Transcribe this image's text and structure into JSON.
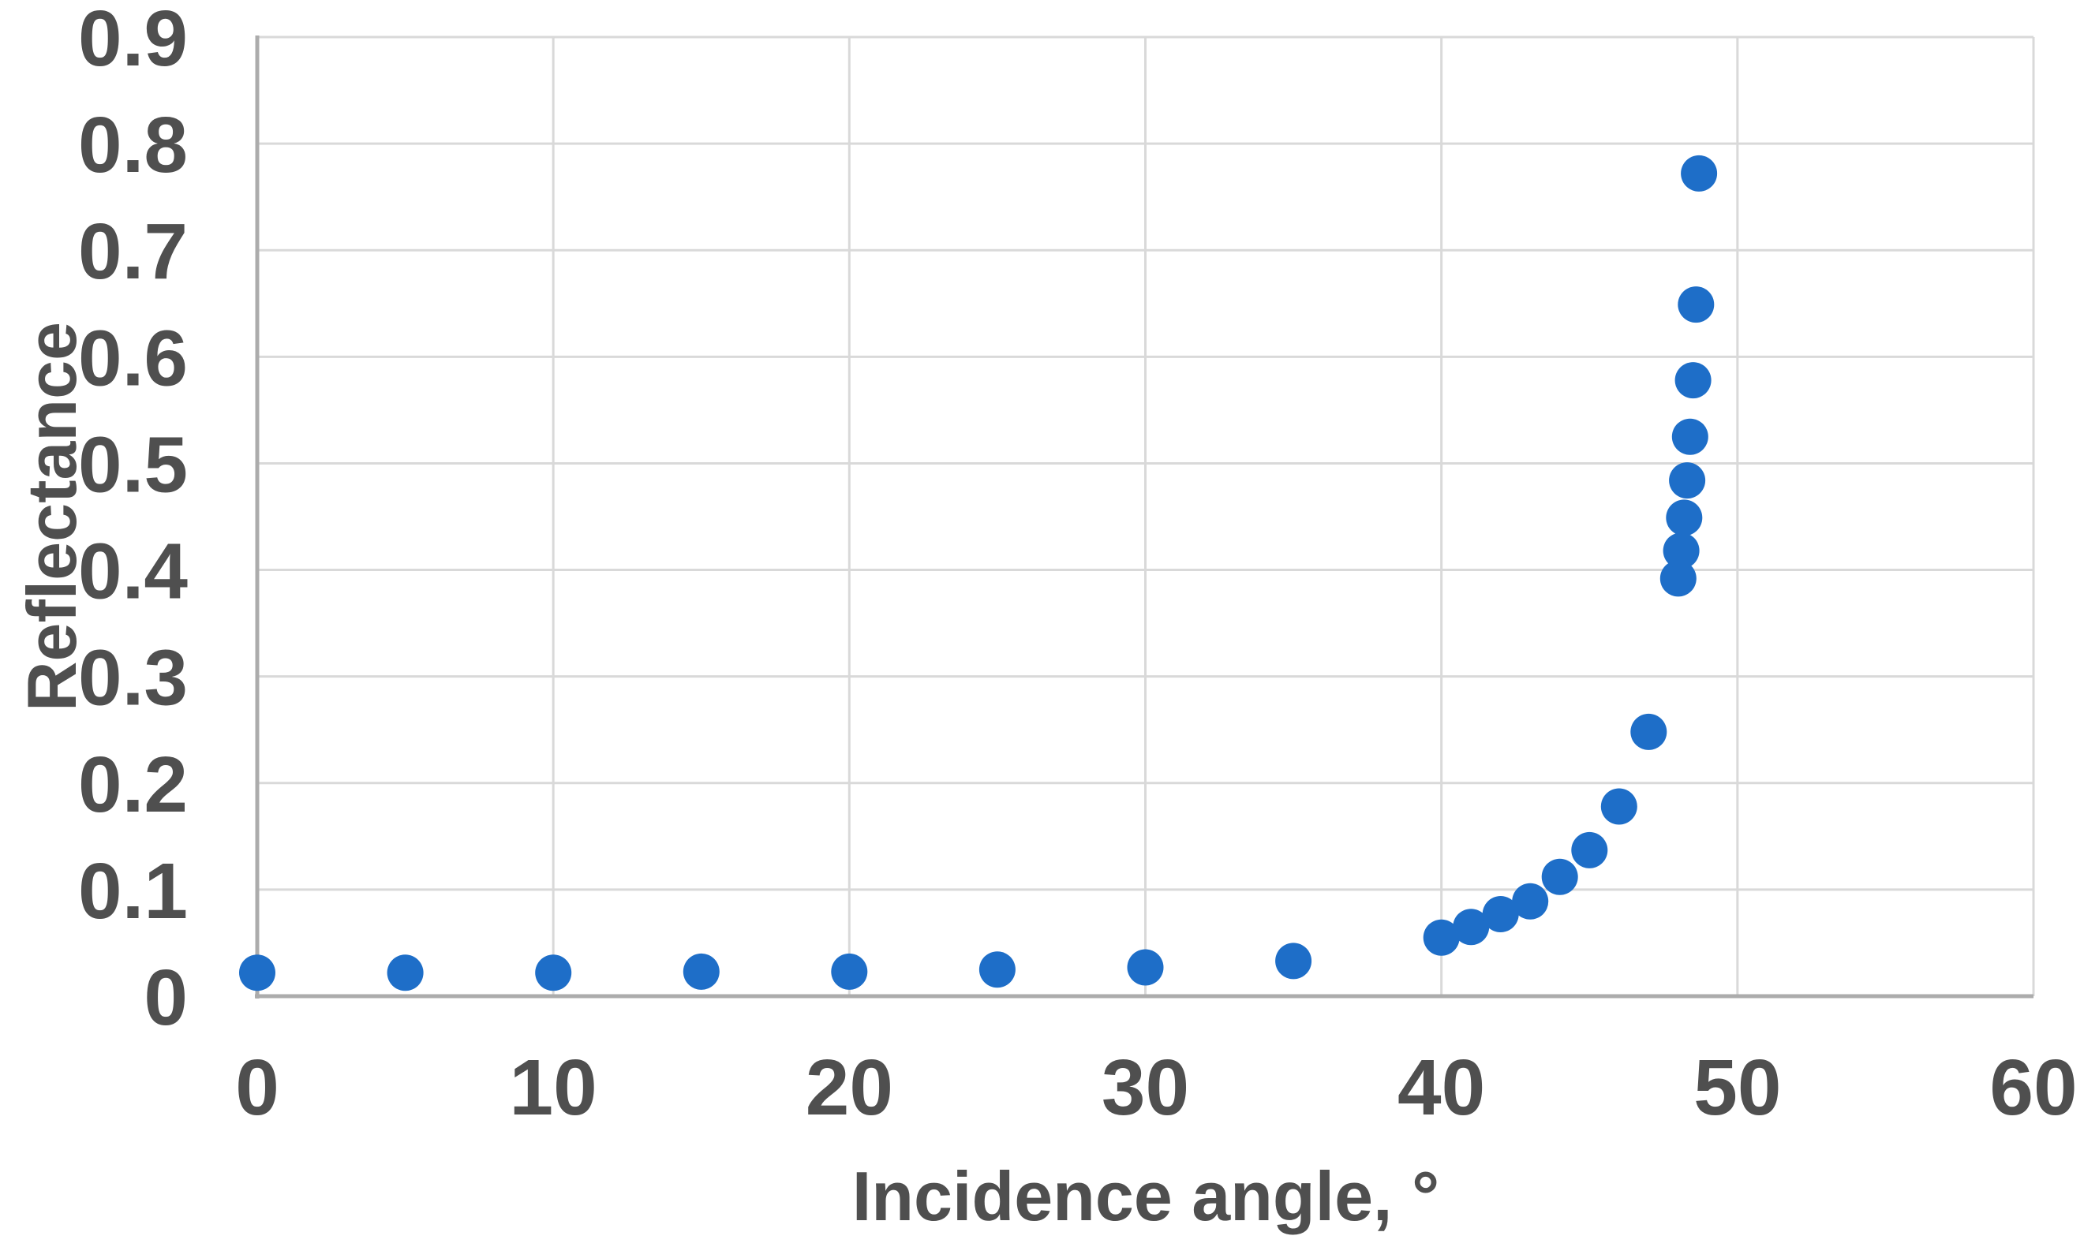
{
  "chart_data": {
    "type": "scatter",
    "title": "",
    "xlabel": "Incidence angle, °",
    "ylabel": "Reflectance",
    "x": [
      0,
      5,
      10,
      15,
      20,
      25,
      30,
      35,
      40,
      41,
      42,
      43,
      44,
      45,
      46,
      47,
      48.0,
      48.1,
      48.2,
      48.3,
      48.4,
      48.5,
      48.6,
      48.7
    ],
    "y": [
      0.022,
      0.022,
      0.022,
      0.023,
      0.023,
      0.025,
      0.027,
      0.033,
      0.055,
      0.065,
      0.077,
      0.089,
      0.112,
      0.137,
      0.178,
      0.248,
      0.392,
      0.418,
      0.449,
      0.484,
      0.525,
      0.578,
      0.649,
      0.772
    ],
    "xlim": [
      0,
      60
    ],
    "ylim": [
      0,
      0.9
    ],
    "x_ticks": [
      0,
      10,
      20,
      30,
      40,
      50,
      60
    ],
    "y_ticks": [
      0,
      0.1,
      0.2,
      0.3,
      0.4,
      0.5,
      0.6,
      0.7,
      0.8,
      0.9
    ],
    "x_tick_labels": [
      "0",
      "10",
      "20",
      "30",
      "40",
      "50",
      "60"
    ],
    "y_tick_labels": [
      "0",
      "0.1",
      "0.2",
      "0.3",
      "0.4",
      "0.5",
      "0.6",
      "0.7",
      "0.8",
      "0.9"
    ],
    "grid": true,
    "legend": false
  },
  "colors": {
    "marker": "#1E6EC8",
    "grid": "#D9D9D9",
    "axis": "#ACACAC",
    "text": "#4F4F4F",
    "background": "#FFFFFF"
  }
}
